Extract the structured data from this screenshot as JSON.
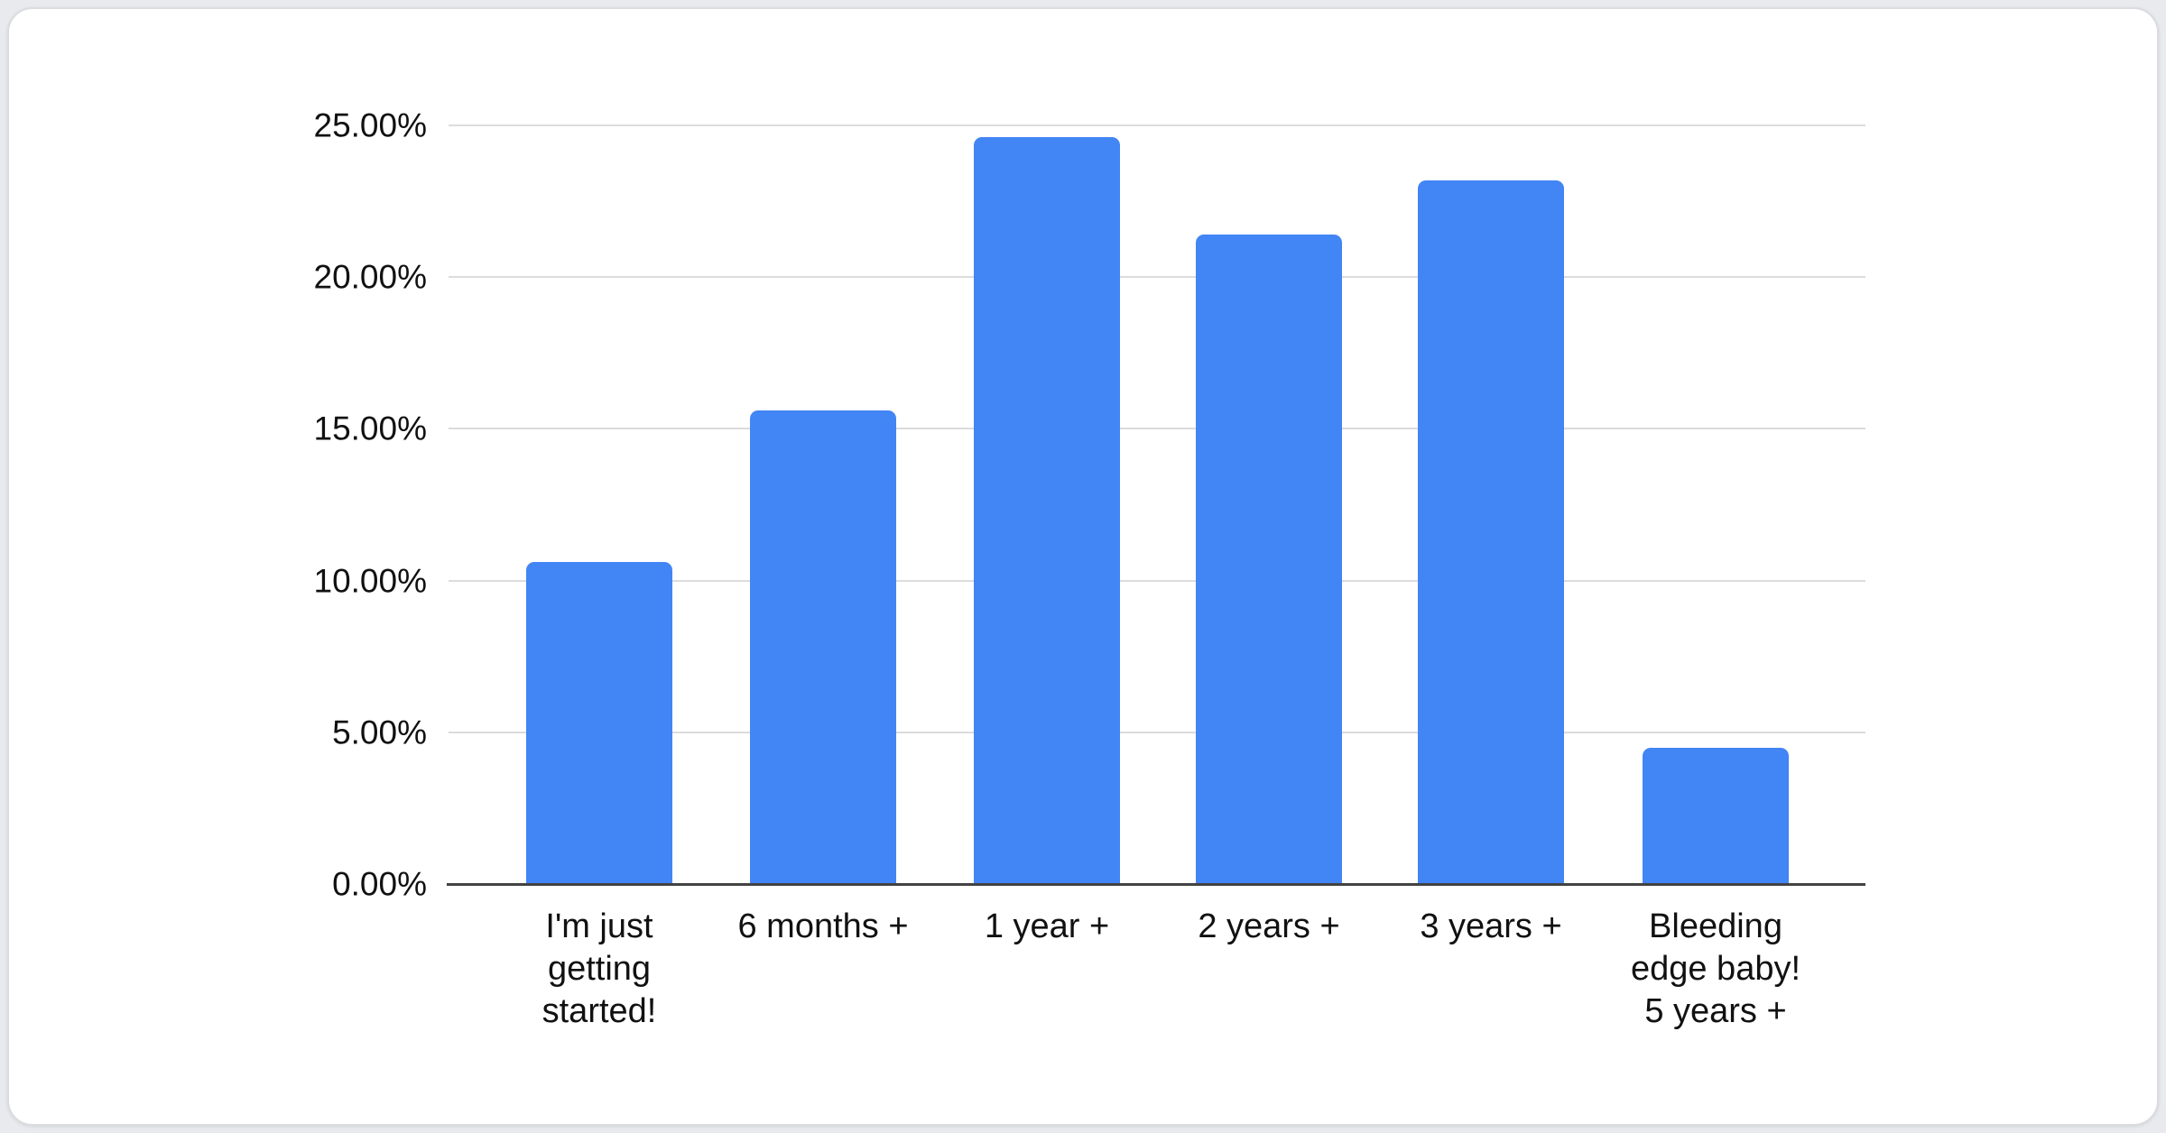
{
  "page": {
    "background_color": "#e8eaed",
    "card_background": "#ffffff",
    "card_border_color": "#dadce0"
  },
  "chart_data": {
    "type": "bar",
    "title": "",
    "categories": [
      "I'm just getting started!",
      "6 months +",
      "1 year +",
      "2 years +",
      "3 years +",
      "Bleeding edge baby! 5 years +"
    ],
    "category_display": [
      "I'm just\ngetting\nstarted!",
      "6 months +",
      "1 year +",
      "2 years +",
      "3 years +",
      "Bleeding\nedge baby!\n5 years +"
    ],
    "values": [
      10.6,
      15.6,
      24.6,
      21.4,
      23.2,
      4.5
    ],
    "unit": "%",
    "ylabel": "",
    "xlabel": "",
    "ylim": [
      0,
      25
    ],
    "y_tick_step": 5,
    "y_ticks": [
      "0.00%",
      "5.00%",
      "10.00%",
      "15.00%",
      "20.00%",
      "25.00%"
    ],
    "grid": true,
    "legend": "none",
    "bar_color": "#4285f4",
    "gridline_color": "#dcdcdc",
    "axis_line_color": "#424242",
    "text_color": "#111111"
  }
}
